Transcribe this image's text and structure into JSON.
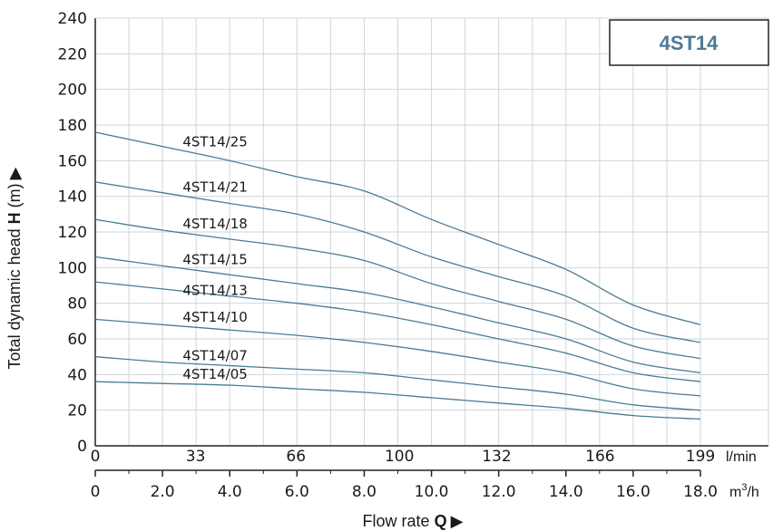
{
  "chart_data": {
    "type": "line",
    "title": "4ST14",
    "xlabel_prefix": "Flow rate ",
    "xlabel_symbol": "Q",
    "xlabel_arrow": "▶",
    "ylabel_prefix": "Total dynamic head ",
    "ylabel_symbol": "H",
    "ylabel_unit": " (m)",
    "ylabel_arrow": "▶",
    "xlim": [
      0,
      18
    ],
    "ylim": [
      0,
      240
    ],
    "grid": true,
    "y_ticks": [
      "0",
      "20",
      "40",
      "60",
      "80",
      "100",
      "120",
      "140",
      "160",
      "180",
      "200",
      "220",
      "240"
    ],
    "x_ticks_m3h": [
      "0",
      "2.0",
      "4.0",
      "6.0",
      "8.0",
      "10.0",
      "12.0",
      "14.0",
      "16.0",
      "18.0"
    ],
    "x_ticks_lmin": [
      "0",
      "33",
      "66",
      "100",
      "132",
      "166",
      "199"
    ],
    "x_unit_lmin": "l/min",
    "x_unit_m3h_base": "m",
    "x_unit_m3h_sup": "3",
    "x_unit_m3h_tail": "/h",
    "colors": {
      "curve": "#4a7b95",
      "grid": "#cfd6da",
      "axis": "#222222",
      "title": "#4a7b95"
    },
    "x": [
      0,
      2,
      4,
      6,
      8,
      10,
      12,
      14,
      16,
      18
    ],
    "series": [
      {
        "name": "4ST14/25",
        "values": [
          176,
          168,
          160,
          151,
          143,
          127,
          113,
          99,
          79,
          68
        ]
      },
      {
        "name": "4ST14/21",
        "values": [
          148,
          142,
          136,
          130,
          120,
          106,
          95,
          84,
          66,
          58
        ]
      },
      {
        "name": "4ST14/18",
        "values": [
          127,
          121,
          116,
          111,
          104,
          91,
          81,
          71,
          56,
          49
        ]
      },
      {
        "name": "4ST14/15",
        "values": [
          106,
          101,
          96,
          91,
          86,
          78,
          69,
          60,
          47,
          41
        ]
      },
      {
        "name": "4ST14/13",
        "values": [
          92,
          88,
          84,
          80,
          75,
          68,
          60,
          52,
          41,
          36
        ]
      },
      {
        "name": "4ST14/10",
        "values": [
          71,
          68,
          65,
          62,
          58,
          53,
          47,
          41,
          32,
          28
        ]
      },
      {
        "name": "4ST14/07",
        "values": [
          50,
          47,
          45,
          43,
          41,
          37,
          33,
          29,
          23,
          20
        ]
      },
      {
        "name": "4ST14/05",
        "values": [
          36,
          35,
          34,
          32,
          30,
          27,
          24,
          21,
          17,
          15
        ]
      }
    ]
  }
}
